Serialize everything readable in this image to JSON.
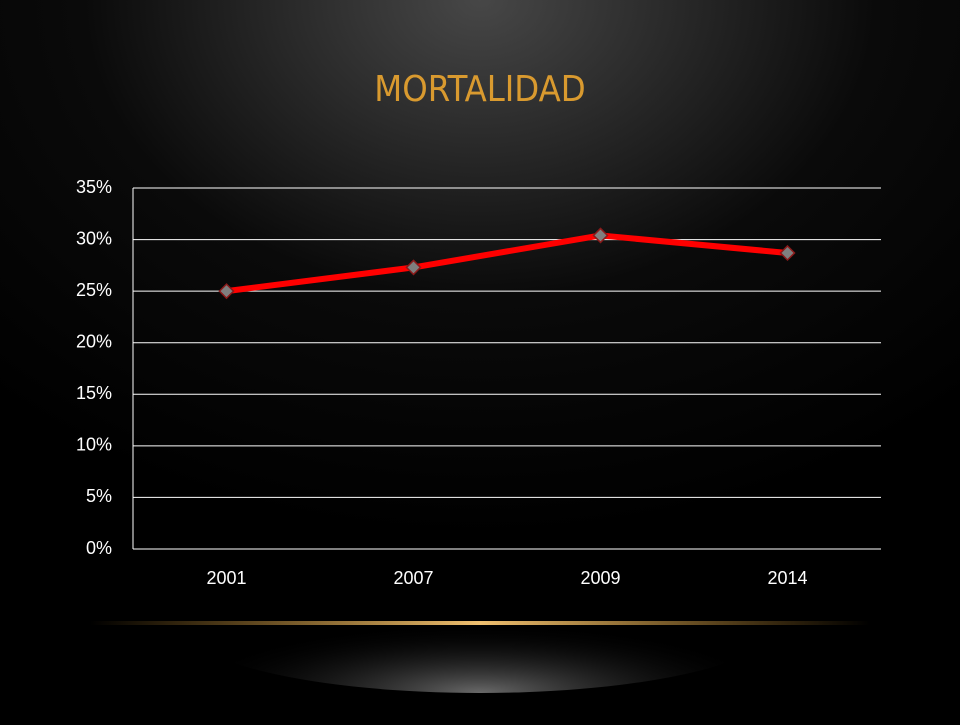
{
  "chart_data": {
    "type": "line",
    "title": "MORTALIDAD",
    "categories": [
      "2001",
      "2007",
      "2009",
      "2014"
    ],
    "values": [
      25.0,
      27.3,
      30.4,
      28.7
    ],
    "color": "#ff0000",
    "marker_color": "#7f7f7f",
    "ylim": [
      0,
      35
    ],
    "yticks": [
      {
        "value": 0,
        "label": "0%"
      },
      {
        "value": 5,
        "label": "5%"
      },
      {
        "value": 10,
        "label": "10%"
      },
      {
        "value": 15,
        "label": "15%"
      },
      {
        "value": 20,
        "label": "20%"
      },
      {
        "value": 25,
        "label": "25%"
      },
      {
        "value": 30,
        "label": "30%"
      },
      {
        "value": 35,
        "label": "35%"
      }
    ],
    "grid": true
  }
}
